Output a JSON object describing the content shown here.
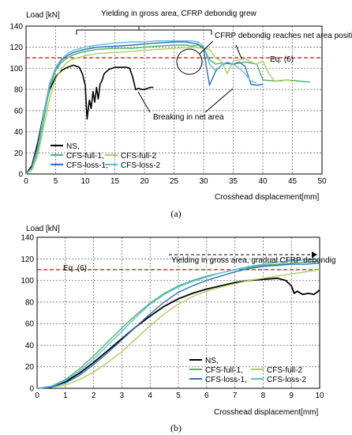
{
  "chart_data": [
    {
      "type": "line",
      "panel_label": "(a)",
      "ylabel": "Load [kN]",
      "xlabel": "Crosshead displacement[mm]",
      "xlim": [
        0,
        50
      ],
      "ylim": [
        0,
        140
      ],
      "xticks": [
        "0",
        "5",
        "10",
        "15",
        "20",
        "25",
        "30",
        "35",
        "40",
        "45",
        "50"
      ],
      "yticks": [
        "0",
        "20",
        "40",
        "60",
        "80",
        "100",
        "120",
        "140"
      ],
      "grid": true,
      "legend_position": "bottom-left",
      "reference_line": {
        "label": "Eq. (6)",
        "y": 110,
        "color": "#d42020"
      },
      "annotations": [
        {
          "text": "Yielding in gross area, CFRP debondig grew"
        },
        {
          "text": "CFRP debondig reaches net area position"
        },
        {
          "text": "Breaking in net area"
        }
      ],
      "series": [
        {
          "name": "NS,",
          "color": "#000000",
          "width": 1.6,
          "x": [
            0,
            1,
            2,
            3,
            4,
            5,
            6,
            7,
            8,
            9,
            9.5,
            10,
            10.3,
            10.7,
            11,
            11.3,
            11.6,
            11.9,
            12.2,
            12.5,
            12.8,
            13.2,
            14,
            15,
            16,
            17,
            17.5,
            18,
            18.5,
            19,
            19.5,
            20,
            21,
            21.5
          ],
          "y": [
            0,
            8,
            30,
            58,
            80,
            92,
            98,
            101,
            103,
            101,
            95,
            84,
            52,
            70,
            62,
            78,
            68,
            82,
            71,
            85,
            88,
            95,
            99,
            101,
            101,
            101,
            100,
            92,
            80,
            81,
            80,
            80,
            82,
            82
          ]
        },
        {
          "name": "CFS-full-1,",
          "color": "#4fb36b",
          "width": 1.4,
          "x": [
            0,
            1,
            2,
            3,
            4,
            5,
            6,
            7,
            8,
            10,
            12,
            15,
            18,
            20,
            22,
            25,
            27,
            28,
            29,
            30,
            31,
            32,
            33,
            35,
            37,
            39,
            40,
            42,
            44,
            46,
            48
          ],
          "y": [
            0,
            5,
            22,
            52,
            82,
            98,
            106,
            110,
            113,
            116,
            118,
            119,
            119,
            120,
            121,
            122,
            122,
            121,
            122,
            120,
            108,
            104,
            105,
            104,
            106,
            104,
            89,
            88,
            89,
            88,
            87
          ]
        },
        {
          "name": "CFS-full-2",
          "color": "#a8d060",
          "width": 1.4,
          "x": [
            0,
            1,
            2,
            3,
            4,
            5,
            6,
            7,
            8,
            10,
            12,
            15,
            18,
            20,
            22,
            25,
            28,
            30,
            31,
            32,
            33,
            34,
            35,
            36,
            37,
            38,
            39,
            40,
            41,
            42,
            43,
            44,
            45
          ],
          "y": [
            0,
            4,
            18,
            45,
            72,
            90,
            100,
            106,
            109,
            112,
            114,
            115,
            116,
            117,
            118,
            119,
            120,
            119,
            118,
            110,
            107,
            95,
            107,
            108,
            109,
            106,
            104,
            107,
            95,
            88,
            88,
            89,
            88
          ]
        },
        {
          "name": "CFS-loss-1,",
          "color": "#2f6fb7",
          "width": 1.4,
          "x": [
            0,
            1,
            2,
            3,
            4,
            5,
            6,
            7,
            8,
            10,
            12,
            15,
            18,
            20,
            22,
            25,
            27,
            28,
            29,
            30,
            30.5,
            31,
            32,
            33,
            34,
            35,
            36,
            37,
            38,
            39,
            40
          ],
          "y": [
            0,
            6,
            26,
            58,
            86,
            100,
            108,
            112,
            115,
            118,
            120,
            121,
            122,
            123,
            124,
            125,
            125,
            124,
            123,
            119,
            100,
            84,
            97,
            103,
            105,
            104,
            106,
            102,
            85,
            84,
            85
          ]
        },
        {
          "name": "CFS-loss-2",
          "color": "#5bbfe0",
          "width": 1.4,
          "x": [
            0,
            1,
            2,
            3,
            4,
            5,
            6,
            7,
            8,
            10,
            12,
            15,
            18,
            20,
            22,
            25,
            26,
            28,
            29,
            30,
            31,
            32,
            33,
            34,
            35,
            36,
            37,
            38,
            39
          ],
          "y": [
            0,
            6,
            25,
            57,
            85,
            101,
            109,
            114,
            117,
            120,
            122,
            124,
            125,
            125,
            126,
            126,
            126,
            126,
            125,
            121,
            104,
            98,
            103,
            106,
            104,
            100,
            95,
            88,
            86
          ]
        }
      ]
    },
    {
      "type": "line",
      "panel_label": "(b)",
      "ylabel": "Load [kN]",
      "xlabel": "Crosshead displacement[mm]",
      "xlim": [
        0,
        10
      ],
      "ylim": [
        0,
        140
      ],
      "xticks": [
        "0",
        "1",
        "2",
        "3",
        "4",
        "5",
        "6",
        "7",
        "8",
        "9",
        "10"
      ],
      "yticks": [
        "0",
        "20",
        "40",
        "60",
        "80",
        "100",
        "120",
        "140"
      ],
      "grid": true,
      "legend_position": "bottom-right",
      "reference_line": {
        "label": "Eq. (6)",
        "y": 110,
        "color": "#d42020"
      },
      "annotations": [
        {
          "text": "Yielding in gross area, gradual CFRP debondig"
        }
      ],
      "series": [
        {
          "name": "NS,",
          "color": "#000000",
          "width": 1.8,
          "x": [
            0,
            0.5,
            1,
            1.5,
            2,
            2.5,
            3,
            3.5,
            4,
            4.5,
            5,
            5.5,
            6,
            6.5,
            7,
            7.5,
            8,
            8.5,
            8.8,
            9,
            9.1,
            9.2,
            9.4,
            9.6,
            9.8,
            10
          ],
          "y": [
            0,
            1,
            6,
            14,
            24,
            35,
            46,
            57,
            67,
            76,
            83,
            88,
            92,
            95,
            98,
            100,
            101,
            102,
            100,
            95,
            88,
            90,
            87,
            88,
            87,
            91
          ]
        },
        {
          "name": "CFS-full-1,",
          "color": "#4fb36b",
          "width": 1.4,
          "x": [
            0,
            0.5,
            1,
            1.5,
            2,
            2.5,
            3,
            3.5,
            4,
            4.5,
            5,
            5.5,
            6,
            6.5,
            7,
            7.5,
            8,
            8.5,
            9,
            9.5,
            10
          ],
          "y": [
            0,
            2,
            8,
            18,
            30,
            43,
            56,
            68,
            79,
            88,
            95,
            100,
            104,
            107,
            110,
            112,
            114,
            115,
            116,
            117,
            118
          ]
        },
        {
          "name": "CFS-full-2",
          "color": "#a8d060",
          "width": 1.4,
          "x": [
            0,
            0.5,
            1,
            1.5,
            2,
            2.5,
            3,
            3.5,
            4,
            4.5,
            5,
            5.5,
            6,
            6.5,
            7,
            7.5,
            8,
            8.5,
            9,
            9.5,
            10
          ],
          "y": [
            0,
            1,
            3,
            8,
            15,
            24,
            34,
            46,
            58,
            69,
            78,
            85,
            90,
            94,
            97,
            100,
            102,
            104,
            106,
            108,
            110
          ]
        },
        {
          "name": "CFS-loss-1,",
          "color": "#2f6fb7",
          "width": 1.4,
          "x": [
            0,
            0.5,
            1,
            1.5,
            2,
            2.5,
            3,
            3.5,
            4,
            4.5,
            5,
            5.5,
            6,
            6.5,
            7,
            7.5,
            8,
            8.5,
            9,
            9.5,
            10
          ],
          "y": [
            0,
            1,
            5,
            12,
            22,
            33,
            45,
            57,
            69,
            80,
            89,
            95,
            100,
            104,
            108,
            111,
            113,
            114,
            115,
            115,
            116
          ]
        },
        {
          "name": "CFS-loss-2",
          "color": "#5bbfe0",
          "width": 1.4,
          "x": [
            0,
            0.5,
            1,
            1.5,
            2,
            2.5,
            3,
            3.5,
            4,
            4.5,
            5,
            5.5,
            6,
            6.5,
            7,
            7.5,
            8,
            8.5,
            9,
            9.5,
            10
          ],
          "y": [
            0,
            2,
            7,
            16,
            27,
            40,
            53,
            66,
            78,
            87,
            94,
            99,
            103,
            107,
            110,
            113,
            115,
            117,
            118,
            119,
            120
          ]
        }
      ]
    }
  ]
}
